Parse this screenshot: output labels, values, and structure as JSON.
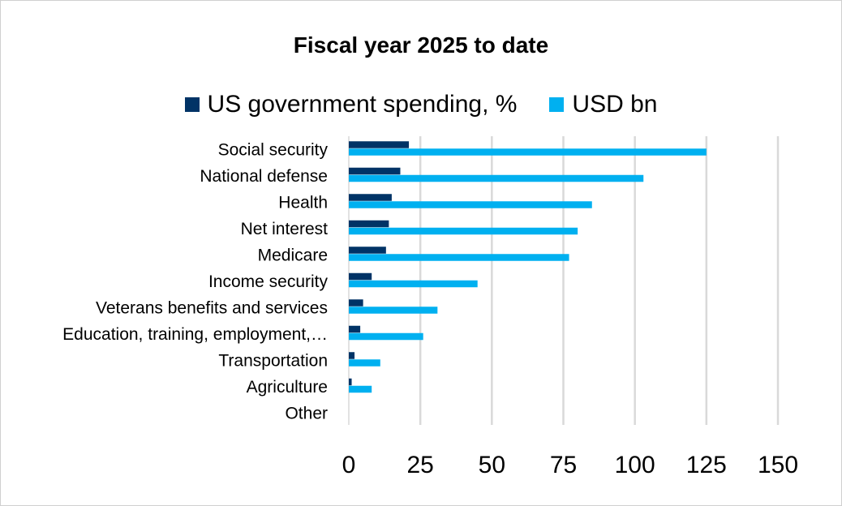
{
  "chart_data": {
    "type": "bar",
    "orientation": "horizontal",
    "title": "Fiscal year 2025 to date",
    "categories": [
      "Social security",
      "National defense",
      "Health",
      "Net interest",
      "Medicare",
      "Income security",
      "Veterans benefits and services",
      "Education, training, employment,…",
      "Transportation",
      "Agriculture",
      "Other"
    ],
    "series": [
      {
        "name": "US government spending, %",
        "color": "#003366",
        "values": [
          21,
          18,
          15,
          14,
          13,
          8,
          5,
          4,
          2,
          1,
          0
        ]
      },
      {
        "name": "USD bn",
        "color": "#00b0f0",
        "values": [
          125,
          103,
          85,
          80,
          77,
          45,
          31,
          26,
          11,
          8,
          0
        ]
      }
    ],
    "xlim": [
      0,
      150
    ],
    "xticks": [
      "0",
      "25",
      "50",
      "75",
      "100",
      "125",
      "150"
    ],
    "grid": true,
    "legend_position": "top"
  }
}
